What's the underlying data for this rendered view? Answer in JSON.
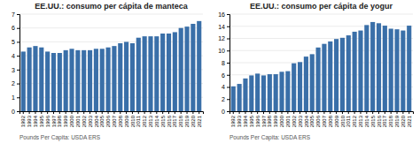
{
  "chart_data": [
    {
      "type": "bar",
      "title": "EE.UU.: consumo per cápita de manteca",
      "annotations": [
        "Pounds Per Capita: USDA ERS"
      ],
      "categories": [
        1992,
        1993,
        1994,
        1995,
        1996,
        1997,
        1998,
        1999,
        2000,
        2001,
        2002,
        2003,
        2004,
        2005,
        2006,
        2007,
        2008,
        2009,
        2010,
        2011,
        2012,
        2013,
        2014,
        2015,
        2016,
        2017,
        2018,
        2019,
        2020,
        2021
      ],
      "values": [
        4.3,
        4.6,
        4.7,
        4.6,
        4.3,
        4.2,
        4.2,
        4.4,
        4.5,
        4.4,
        4.4,
        4.4,
        4.5,
        4.5,
        4.6,
        4.7,
        4.9,
        5.0,
        4.9,
        5.3,
        5.4,
        5.4,
        5.4,
        5.6,
        5.6,
        5.7,
        6.0,
        6.1,
        6.3,
        6.5
      ],
      "color": "#3a6fa8",
      "ylim": [
        0,
        7
      ],
      "yticks": [
        0,
        1,
        2,
        3,
        4,
        5,
        6,
        7
      ],
      "grid": true
    },
    {
      "type": "bar",
      "title": "EE.UU.: consumo per cápita de yogur",
      "annotations": [
        "Pounds Per Capita: USDA ERS"
      ],
      "categories": [
        1992,
        1993,
        1994,
        1995,
        1996,
        1997,
        1998,
        1999,
        2000,
        2001,
        2002,
        2003,
        2004,
        2005,
        2006,
        2007,
        2008,
        2009,
        2010,
        2011,
        2012,
        2013,
        2014,
        2015,
        2016,
        2017,
        2018,
        2019,
        2020,
        2021
      ],
      "values": [
        4.1,
        4.5,
        5.4,
        5.9,
        6.2,
        5.9,
        6.1,
        6.1,
        6.5,
        6.6,
        7.9,
        8.1,
        9.0,
        9.4,
        10.5,
        11.1,
        11.5,
        11.9,
        12.1,
        12.5,
        13.1,
        13.3,
        14.2,
        14.7,
        14.5,
        14.1,
        13.6,
        13.5,
        13.3,
        14.1
      ],
      "color": "#3a6fa8",
      "ylim": [
        0,
        16
      ],
      "yticks": [
        0,
        2,
        4,
        6,
        8,
        10,
        12,
        14,
        16
      ],
      "grid": true
    }
  ]
}
